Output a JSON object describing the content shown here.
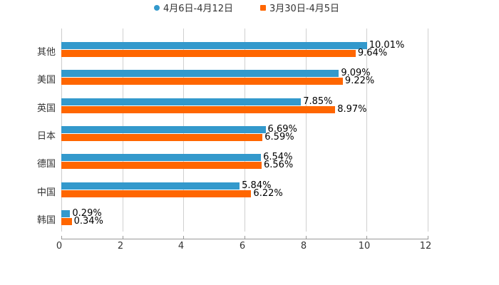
{
  "chart_data": {
    "type": "bar",
    "orientation": "horizontal",
    "title": "",
    "xlabel": "",
    "ylabel": "",
    "categories": [
      "其他",
      "美国",
      "英国",
      "日本",
      "德国",
      "中国",
      "韩国"
    ],
    "series": [
      {
        "name": "4月6日-4月12日",
        "color": "#3399cc",
        "values": [
          10.01,
          9.09,
          7.85,
          6.69,
          6.54,
          5.84,
          0.29
        ],
        "labels": [
          "10.01%",
          "9.09%",
          "7.85%",
          "6.69%",
          "6.54%",
          "5.84%",
          "0.29%"
        ]
      },
      {
        "name": "3月30日-4月5日",
        "color": "#ff6600",
        "values": [
          9.64,
          9.22,
          8.97,
          6.59,
          6.56,
          6.22,
          0.34
        ],
        "labels": [
          "9.64%",
          "9.22%",
          "8.97%",
          "6.59%",
          "6.56%",
          "6.22%",
          "0.34%"
        ]
      }
    ],
    "xlim": [
      0,
      12
    ],
    "xticks": [
      "0",
      "2",
      "4",
      "6",
      "8",
      "10",
      "12"
    ],
    "grid": "vertical",
    "legend_position": "top"
  },
  "legend": [
    {
      "label": "4月6日-4月12日",
      "color": "#3399cc",
      "marker": "circle"
    },
    {
      "label": "3月30日-4月5日",
      "color": "#ff6600",
      "marker": "square"
    }
  ]
}
